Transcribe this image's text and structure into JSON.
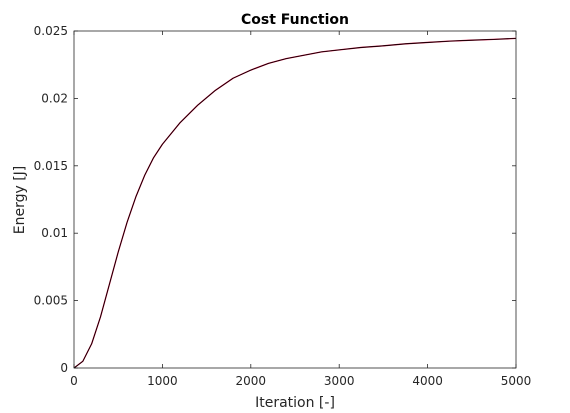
{
  "chart_data": {
    "type": "line",
    "title": "Cost Function",
    "xlabel": "Iteration [-]",
    "ylabel": "Energy [J]",
    "xlim": [
      0,
      5000
    ],
    "ylim": [
      0,
      0.025
    ],
    "xticks": [
      0,
      1000,
      2000,
      3000,
      4000,
      5000
    ],
    "xtick_labels": [
      "0",
      "1000",
      "2000",
      "3000",
      "4000",
      "5000"
    ],
    "yticks": [
      0,
      0.005,
      0.01,
      0.015,
      0.02,
      0.025
    ],
    "ytick_labels": [
      "0",
      "0.005",
      "0.01",
      "0.015",
      "0.02",
      "0.025"
    ],
    "grid": false,
    "series": [
      {
        "color": "#cc0033",
        "x": [
          0,
          100,
          200,
          300,
          400,
          500,
          600,
          700,
          800,
          900,
          1000,
          1200,
          1400,
          1600,
          1800,
          2000,
          2200,
          2400,
          2600,
          2800,
          3000,
          3250,
          3500,
          3750,
          4000,
          4250,
          4500,
          4750,
          5000
        ],
        "y": [
          0,
          0.0005,
          0.0018,
          0.0038,
          0.0062,
          0.0086,
          0.0108,
          0.0127,
          0.0143,
          0.0156,
          0.0166,
          0.0182,
          0.0195,
          0.0206,
          0.0215,
          0.0221,
          0.0226,
          0.02295,
          0.0232,
          0.02345,
          0.0236,
          0.02378,
          0.0239,
          0.02405,
          0.02415,
          0.02425,
          0.02432,
          0.02438,
          0.02445
        ]
      },
      {
        "color": "#000000",
        "x": [
          0,
          100,
          200,
          300,
          400,
          500,
          600,
          700,
          800,
          900,
          1000,
          1200,
          1400,
          1600,
          1800,
          2000,
          2200,
          2400,
          2600,
          2800,
          3000,
          3250,
          3500,
          3750,
          4000,
          4250,
          4500,
          4750,
          5000
        ],
        "y": [
          0,
          0.0005,
          0.0018,
          0.0038,
          0.0062,
          0.0086,
          0.0108,
          0.0127,
          0.0143,
          0.0156,
          0.0166,
          0.0182,
          0.0195,
          0.0206,
          0.0215,
          0.0221,
          0.0226,
          0.02295,
          0.0232,
          0.02345,
          0.0236,
          0.02378,
          0.0239,
          0.02405,
          0.02415,
          0.02425,
          0.02432,
          0.02438,
          0.02445
        ]
      }
    ]
  }
}
